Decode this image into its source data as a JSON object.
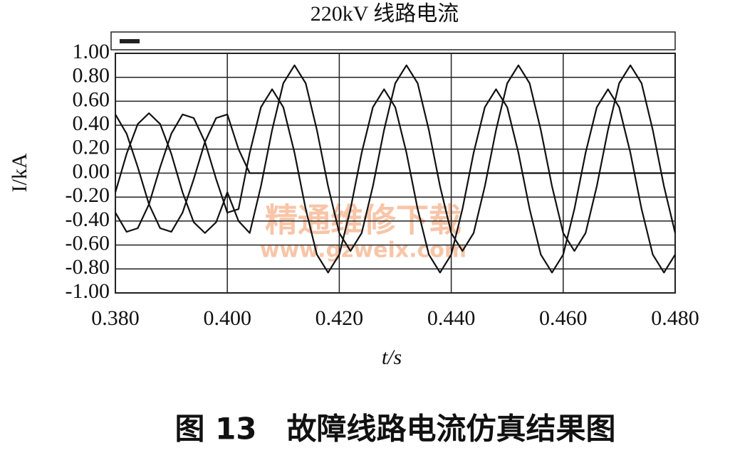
{
  "chart_data": {
    "type": "line",
    "title": "220kV 线路电流",
    "caption": "图 13　故障线路电流仿真结果图",
    "xlabel": "t/s",
    "ylabel": "I/kA",
    "watermark": [
      "精通维修下载",
      "www.gzweix.com"
    ],
    "x": [
      0.38,
      0.382,
      0.384,
      0.386,
      0.388,
      0.39,
      0.392,
      0.394,
      0.396,
      0.398,
      0.4,
      0.402,
      0.404,
      0.406,
      0.408,
      0.41,
      0.412,
      0.414,
      0.416,
      0.418,
      0.42,
      0.422,
      0.424,
      0.426,
      0.428,
      0.43,
      0.432,
      0.434,
      0.436,
      0.438,
      0.44,
      0.442,
      0.444,
      0.446,
      0.448,
      0.45,
      0.452,
      0.454,
      0.456,
      0.458,
      0.46,
      0.462,
      0.464,
      0.466,
      0.468,
      0.47,
      0.472,
      0.474,
      0.476,
      0.478,
      0.48
    ],
    "series": [
      {
        "color": "#111111",
        "values": [
          -0.16,
          0.16,
          0.41,
          0.5,
          0.41,
          0.16,
          -0.16,
          -0.41,
          -0.5,
          -0.41,
          -0.16,
          -0.4,
          -0.5,
          -0.11,
          0.36,
          0.75,
          0.9,
          0.75,
          0.36,
          -0.11,
          -0.5,
          -0.65,
          -0.5,
          -0.11,
          0.36,
          0.75,
          0.9,
          0.75,
          0.36,
          -0.11,
          -0.5,
          -0.65,
          -0.5,
          -0.11,
          0.36,
          0.75,
          0.9,
          0.75,
          0.36,
          -0.11,
          -0.5,
          -0.65,
          -0.5,
          -0.11,
          0.36,
          0.75,
          0.9,
          0.75,
          0.36,
          -0.11,
          -0.5
        ]
      },
      {
        "color": "#111111",
        "values": [
          -0.33,
          -0.49,
          -0.46,
          -0.26,
          0.05,
          0.33,
          0.49,
          0.46,
          0.26,
          -0.05,
          -0.33,
          -0.3,
          0.17,
          0.55,
          0.7,
          0.55,
          0.17,
          -0.3,
          -0.68,
          -0.83,
          -0.68,
          -0.3,
          0.17,
          0.55,
          0.7,
          0.55,
          0.17,
          -0.3,
          -0.68,
          -0.83,
          -0.68,
          -0.3,
          0.17,
          0.55,
          0.7,
          0.55,
          0.17,
          -0.3,
          -0.68,
          -0.83,
          -0.68,
          -0.3,
          0.17,
          0.55,
          0.7,
          0.55,
          0.17,
          -0.3,
          -0.68,
          -0.83,
          -0.68
        ]
      },
      {
        "color": "#111111",
        "values": [
          0.49,
          0.33,
          0.05,
          -0.26,
          -0.46,
          -0.49,
          -0.33,
          -0.05,
          0.26,
          0.46,
          0.49,
          0.2,
          0,
          0,
          0,
          0,
          0,
          0,
          0,
          0,
          0,
          0,
          0,
          0,
          0,
          0,
          0,
          0,
          0,
          0,
          0,
          0,
          0,
          0,
          0,
          0,
          0,
          0,
          0,
          0,
          0,
          0,
          0,
          0,
          0,
          0,
          0,
          0,
          0,
          0,
          0
        ]
      }
    ],
    "xlim": [
      0.38,
      0.48
    ],
    "xticks": [
      {
        "value": 0.38,
        "label": "0.380"
      },
      {
        "value": 0.4,
        "label": "0.400"
      },
      {
        "value": 0.42,
        "label": "0.420"
      },
      {
        "value": 0.44,
        "label": "0.440"
      },
      {
        "value": 0.46,
        "label": "0.460"
      },
      {
        "value": 0.48,
        "label": "0.480"
      }
    ],
    "ylim": [
      -1,
      1
    ],
    "yticks": [
      {
        "value": 1,
        "label": "1.00"
      },
      {
        "value": 0.8,
        "label": "0.80"
      },
      {
        "value": 0.6,
        "label": "0.60"
      },
      {
        "value": 0.4,
        "label": "0.40"
      },
      {
        "value": 0.2,
        "label": "0.20"
      },
      {
        "value": 0,
        "label": "0.00"
      },
      {
        "value": -0.2,
        "label": "-0.20"
      },
      {
        "value": -0.4,
        "label": "-0.40"
      },
      {
        "value": -0.6,
        "label": "-0.60"
      },
      {
        "value": -0.8,
        "label": "-0.80"
      },
      {
        "value": -1,
        "label": "-1.00"
      }
    ],
    "grid": true
  }
}
